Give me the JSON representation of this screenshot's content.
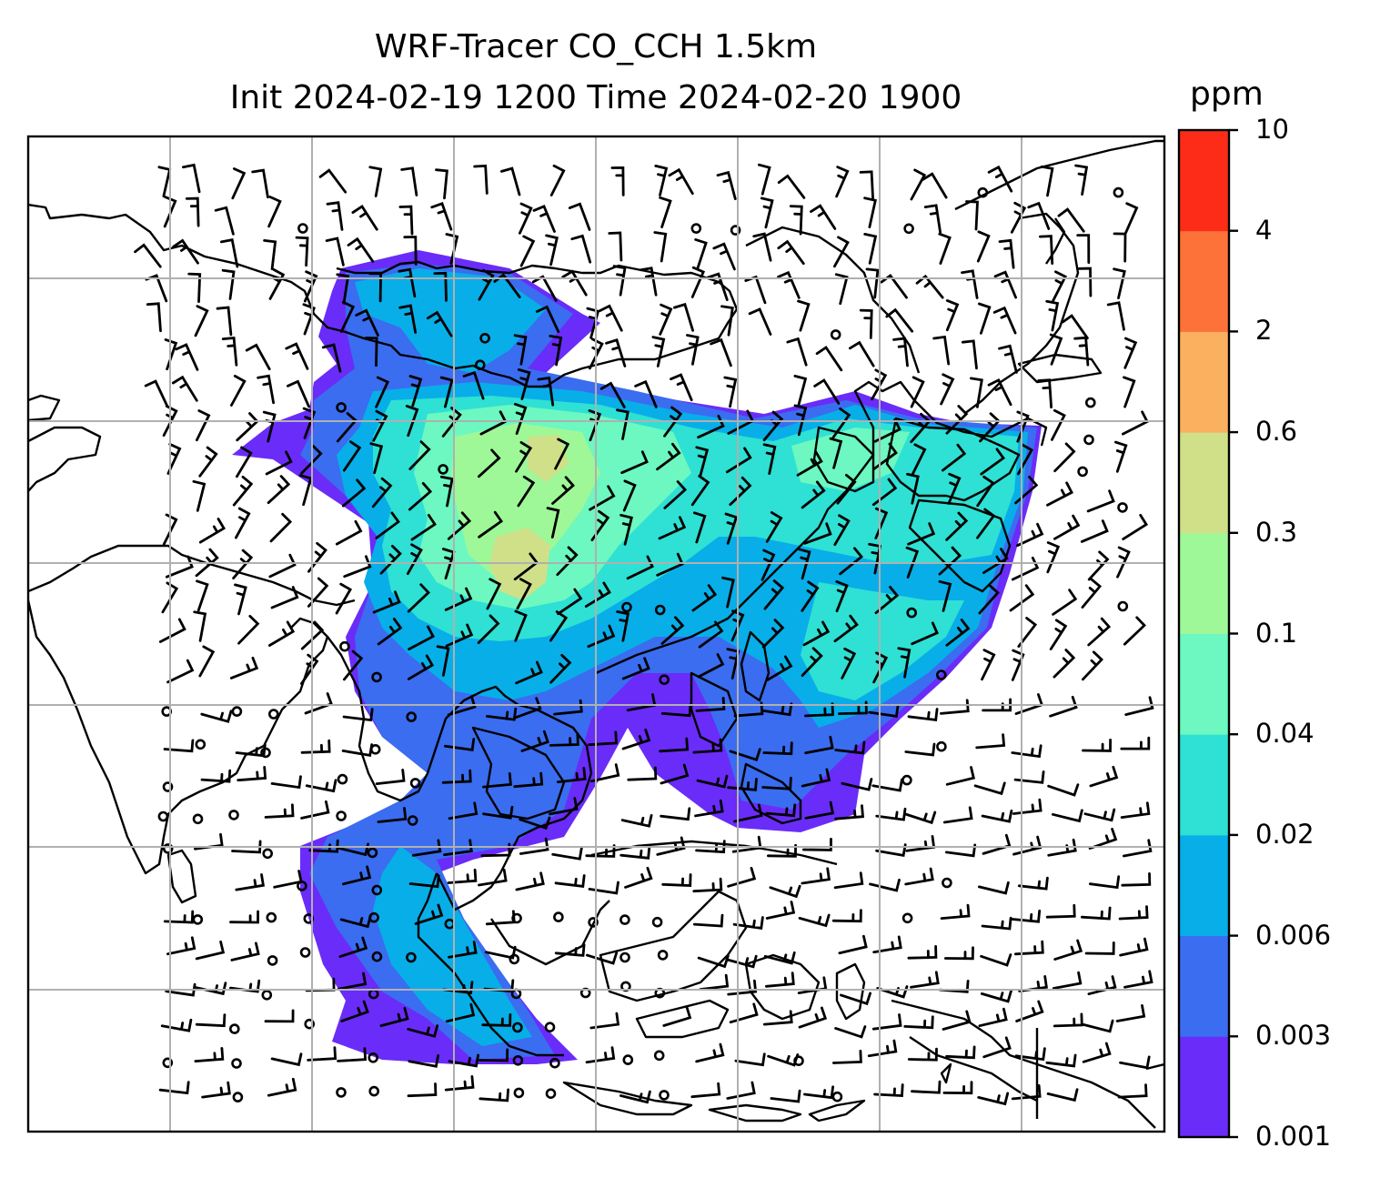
{
  "title": {
    "line1": "WRF-Tracer CO_CCH 1.5km",
    "line2": "Init 2024-02-19 1200 Time 2024-02-20 1900"
  },
  "colorbar": {
    "unit": "ppm",
    "levels": [
      "0.001",
      "0.003",
      "0.006",
      "0.02",
      "0.04",
      "0.1",
      "0.3",
      "0.6",
      "2",
      "4",
      "10"
    ],
    "colors": [
      "#6a2cf8",
      "#3a6df0",
      "#08aee8",
      "#2fe0d4",
      "#6cf8c0",
      "#9ef897",
      "#cfe088",
      "#fbb060",
      "#fd7238",
      "#fd2c18"
    ]
  },
  "map": {
    "gridlines": true,
    "grid_color": "#b0b0b0",
    "coastline_color": "#000000",
    "wind_barbs": true,
    "calm_marker": "circle"
  }
}
